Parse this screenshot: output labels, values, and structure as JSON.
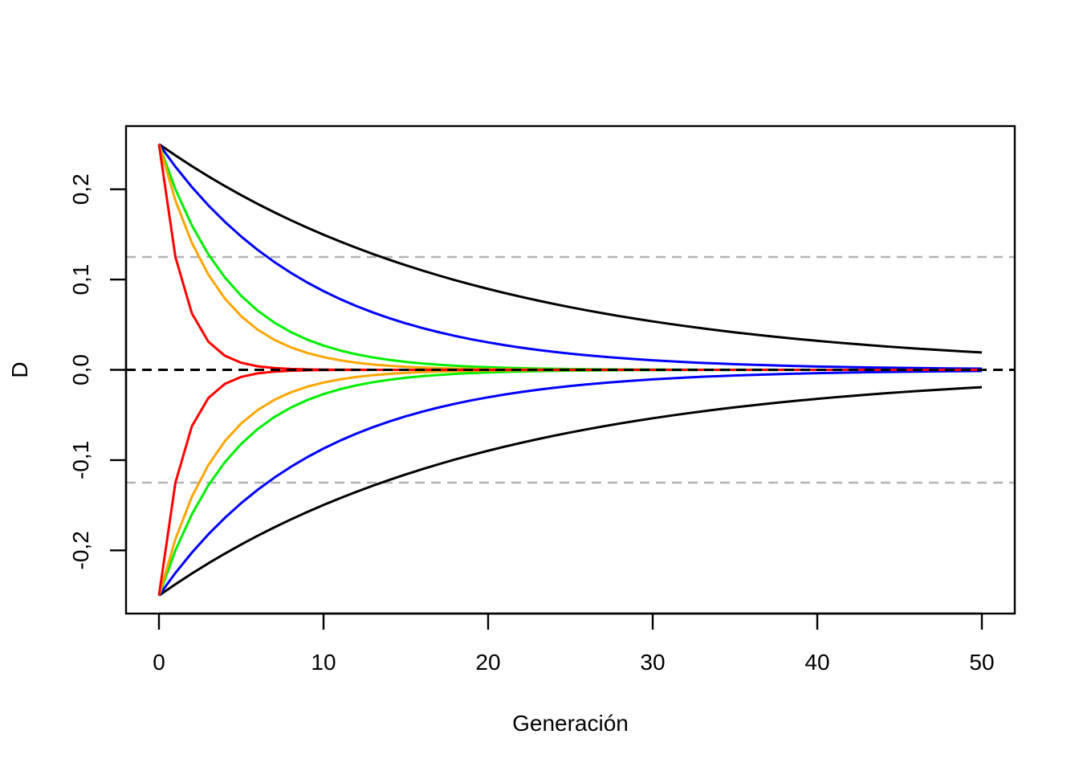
{
  "chart_data": {
    "type": "line",
    "xlabel": "Generación",
    "ylabel": "D",
    "xlim": [
      -2,
      52
    ],
    "ylim": [
      -0.27,
      0.27
    ],
    "x_ticks": [
      {
        "value": 0,
        "label": "0"
      },
      {
        "value": 10,
        "label": "10"
      },
      {
        "value": 20,
        "label": "20"
      },
      {
        "value": 30,
        "label": "30"
      },
      {
        "value": 40,
        "label": "40"
      },
      {
        "value": 50,
        "label": "50"
      }
    ],
    "y_ticks": [
      {
        "value": -0.2,
        "label": "-0,2"
      },
      {
        "value": -0.1,
        "label": "-0,1"
      },
      {
        "value": 0.0,
        "label": "0,0"
      },
      {
        "value": 0.1,
        "label": "0,1"
      },
      {
        "value": 0.2,
        "label": "0,2"
      }
    ],
    "reference_lines": [
      {
        "y": 0.125,
        "color": "#b3b3b3",
        "style": "dashed"
      },
      {
        "y": -0.125,
        "color": "#b3b3b3",
        "style": "dashed"
      },
      {
        "y": 0.0,
        "color": "#000000",
        "style": "dashed"
      }
    ],
    "x_range": [
      0,
      50
    ],
    "initial_values": [
      0.25,
      -0.25
    ],
    "series": [
      {
        "color": "#000000",
        "decay_factor": 0.95
      },
      {
        "color": "#0000ff",
        "decay_factor": 0.9
      },
      {
        "color": "#00ee00",
        "decay_factor": 0.8
      },
      {
        "color": "#ffa500",
        "decay_factor": 0.75
      },
      {
        "color": "#ff0000",
        "decay_factor": 0.5
      }
    ]
  }
}
